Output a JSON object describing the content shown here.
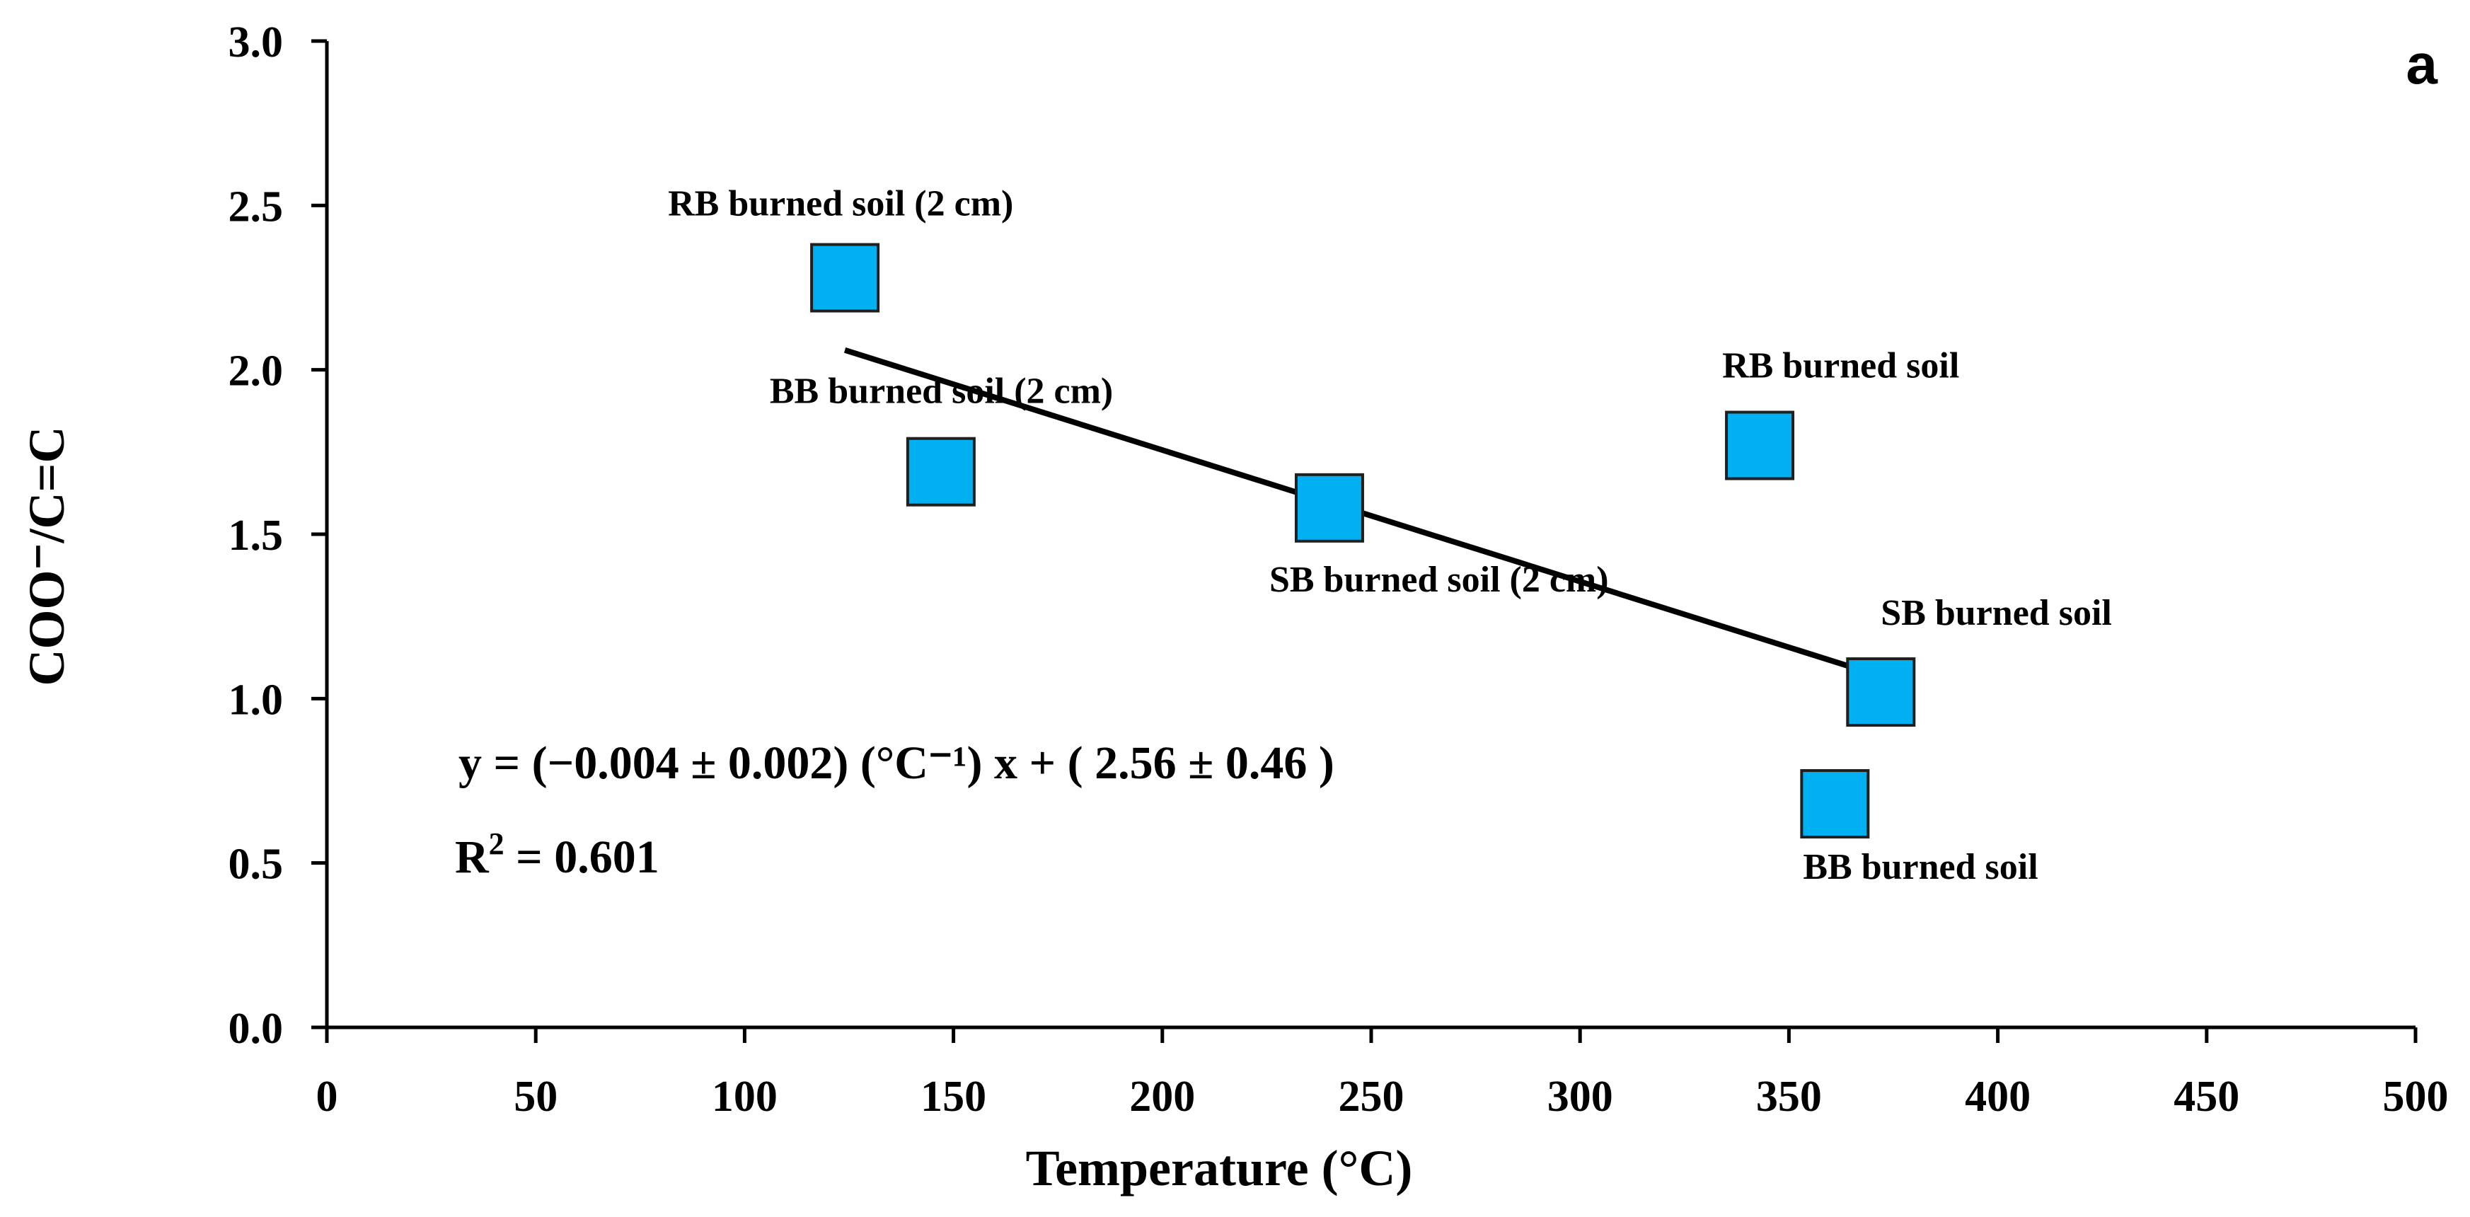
{
  "chart_data": {
    "type": "scatter",
    "panel_label": "a",
    "xlabel": "Temperature (°C)",
    "ylabel": "COO⁻/C=C",
    "xlim": [
      0,
      500
    ],
    "ylim": [
      0,
      3.0
    ],
    "x_ticks": [
      0,
      50,
      100,
      150,
      200,
      250,
      300,
      350,
      400,
      450,
      500
    ],
    "x_tick_labels": [
      "0",
      "50",
      "100",
      "150",
      "200",
      "250",
      "300",
      "350",
      "400",
      "450",
      "500"
    ],
    "y_ticks": [
      0,
      0.5,
      1.0,
      1.5,
      2.0,
      2.5,
      3.0
    ],
    "y_tick_labels": [
      "0.0",
      "0.5",
      "1.0",
      "1.5",
      "2.0",
      "2.5",
      "3.0"
    ],
    "marker_color": "#00B0F0",
    "points": [
      {
        "label": "RB burned soil (2 cm)",
        "x": 124,
        "y": 2.28
      },
      {
        "label": "BB burned soil (2 cm)",
        "x": 147,
        "y": 1.69
      },
      {
        "label": "SB burned soil (2 cm)",
        "x": 240,
        "y": 1.58
      },
      {
        "label": "RB burned soil",
        "x": 343,
        "y": 1.77
      },
      {
        "label": "SB burned soil",
        "x": 372,
        "y": 1.02
      },
      {
        "label": "BB burned soil",
        "x": 361,
        "y": 0.68
      }
    ],
    "fit_line": {
      "x_start": 124,
      "y_start": 2.06,
      "x_end": 374,
      "y_end": 1.06
    },
    "equation": "y = (−0.004 ± 0.002) (°C⁻¹) x + ( 2.56 ± 0.46 )",
    "r_squared_prefix": "R",
    "r_squared_sup": "2",
    "r_squared_value": " = 0.601"
  }
}
